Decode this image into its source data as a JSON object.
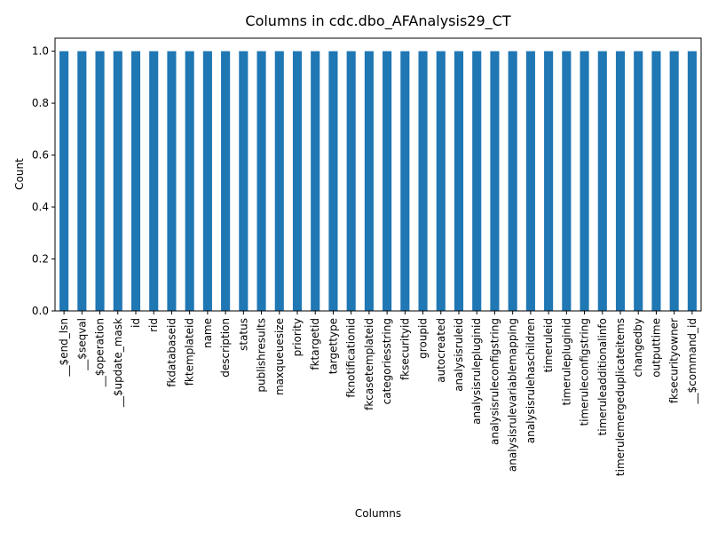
{
  "chart_data": {
    "type": "bar",
    "title": "Columns in cdc.dbo_AFAnalysis29_CT",
    "xlabel": "Columns",
    "ylabel": "Count",
    "ylim": [
      0,
      1.05
    ],
    "yticks": [
      "0.0",
      "0.2",
      "0.4",
      "0.6",
      "0.8",
      "1.0"
    ],
    "grid": false,
    "bar_color": "#1f77b4",
    "categories": [
      "__$end_lsn",
      "__$seqval",
      "__$operation",
      "__$update_mask",
      "id",
      "rid",
      "fkdatabaseid",
      "fktemplateid",
      "name",
      "description",
      "status",
      "publishresults",
      "maxqueuesize",
      "priority",
      "fktargetid",
      "targettype",
      "fknotificationid",
      "fkcasetemplateid",
      "categoriesstring",
      "fksecurityid",
      "groupid",
      "autocreated",
      "analysisruleid",
      "analysisrulepluginid",
      "analysisruleconfigstring",
      "analysisrulevariablemapping",
      "analysisrulehaschildren",
      "timeruleid",
      "timerulepluginid",
      "timeruleconfigstring",
      "timeruleadditionalinfo",
      "timerulemergeduplicateitems",
      "changedby",
      "outputtime",
      "fksecurityowner",
      "__$command_id"
    ],
    "values": [
      1,
      1,
      1,
      1,
      1,
      1,
      1,
      1,
      1,
      1,
      1,
      1,
      1,
      1,
      1,
      1,
      1,
      1,
      1,
      1,
      1,
      1,
      1,
      1,
      1,
      1,
      1,
      1,
      1,
      1,
      1,
      1,
      1,
      1,
      1,
      1
    ]
  }
}
